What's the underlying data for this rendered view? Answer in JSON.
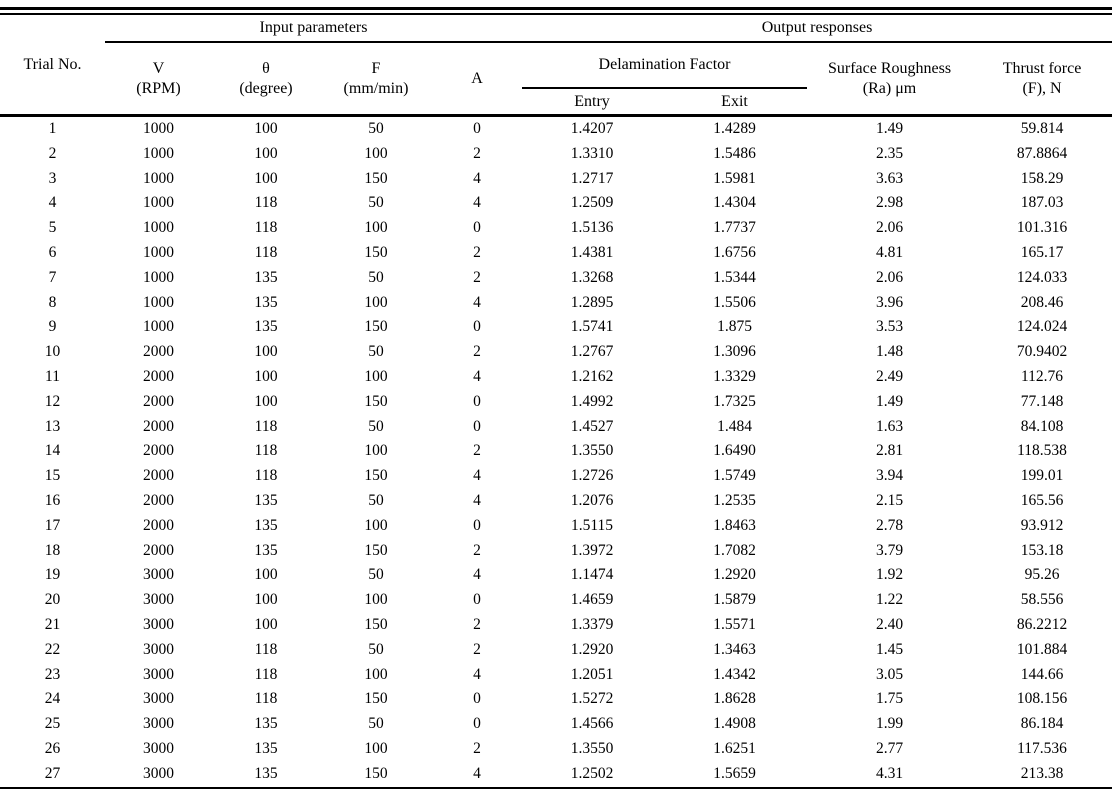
{
  "table": {
    "groups": {
      "trial_no": "Trial No.",
      "input": "Input parameters",
      "output": "Output responses"
    },
    "columns": {
      "v1": "V",
      "v2": "(RPM)",
      "theta1": "θ",
      "theta2": "(degree)",
      "f1": "F",
      "f2": "(mm/min)",
      "a": "A",
      "delam": "Delamination Factor",
      "entry": "Entry",
      "exit": "Exit",
      "surface1": "Surface Roughness",
      "surface2": "(Ra) μm",
      "thrust1": "Thrust force",
      "thrust2": "(F), N"
    },
    "rows": [
      [
        "1",
        "1000",
        "100",
        "50",
        "0",
        "1.4207",
        "1.4289",
        "1.49",
        "59.814"
      ],
      [
        "2",
        "1000",
        "100",
        "100",
        "2",
        "1.3310",
        "1.5486",
        "2.35",
        "87.8864"
      ],
      [
        "3",
        "1000",
        "100",
        "150",
        "4",
        "1.2717",
        "1.5981",
        "3.63",
        "158.29"
      ],
      [
        "4",
        "1000",
        "118",
        "50",
        "4",
        "1.2509",
        "1.4304",
        "2.98",
        "187.03"
      ],
      [
        "5",
        "1000",
        "118",
        "100",
        "0",
        "1.5136",
        "1.7737",
        "2.06",
        "101.316"
      ],
      [
        "6",
        "1000",
        "118",
        "150",
        "2",
        "1.4381",
        "1.6756",
        "4.81",
        "165.17"
      ],
      [
        "7",
        "1000",
        "135",
        "50",
        "2",
        "1.3268",
        "1.5344",
        "2.06",
        "124.033"
      ],
      [
        "8",
        "1000",
        "135",
        "100",
        "4",
        "1.2895",
        "1.5506",
        "3.96",
        "208.46"
      ],
      [
        "9",
        "1000",
        "135",
        "150",
        "0",
        "1.5741",
        "1.875",
        "3.53",
        "124.024"
      ],
      [
        "10",
        "2000",
        "100",
        "50",
        "2",
        "1.2767",
        "1.3096",
        "1.48",
        "70.9402"
      ],
      [
        "11",
        "2000",
        "100",
        "100",
        "4",
        "1.2162",
        "1.3329",
        "2.49",
        "112.76"
      ],
      [
        "12",
        "2000",
        "100",
        "150",
        "0",
        "1.4992",
        "1.7325",
        "1.49",
        "77.148"
      ],
      [
        "13",
        "2000",
        "118",
        "50",
        "0",
        "1.4527",
        "1.484",
        "1.63",
        "84.108"
      ],
      [
        "14",
        "2000",
        "118",
        "100",
        "2",
        "1.3550",
        "1.6490",
        "2.81",
        "118.538"
      ],
      [
        "15",
        "2000",
        "118",
        "150",
        "4",
        "1.2726",
        "1.5749",
        "3.94",
        "199.01"
      ],
      [
        "16",
        "2000",
        "135",
        "50",
        "4",
        "1.2076",
        "1.2535",
        "2.15",
        "165.56"
      ],
      [
        "17",
        "2000",
        "135",
        "100",
        "0",
        "1.5115",
        "1.8463",
        "2.78",
        "93.912"
      ],
      [
        "18",
        "2000",
        "135",
        "150",
        "2",
        "1.3972",
        "1.7082",
        "3.79",
        "153.18"
      ],
      [
        "19",
        "3000",
        "100",
        "50",
        "4",
        "1.1474",
        "1.2920",
        "1.92",
        "95.26"
      ],
      [
        "20",
        "3000",
        "100",
        "100",
        "0",
        "1.4659",
        "1.5879",
        "1.22",
        "58.556"
      ],
      [
        "21",
        "3000",
        "100",
        "150",
        "2",
        "1.3379",
        "1.5571",
        "2.40",
        "86.2212"
      ],
      [
        "22",
        "3000",
        "118",
        "50",
        "2",
        "1.2920",
        "1.3463",
        "1.45",
        "101.884"
      ],
      [
        "23",
        "3000",
        "118",
        "100",
        "4",
        "1.2051",
        "1.4342",
        "3.05",
        "144.66"
      ],
      [
        "24",
        "3000",
        "118",
        "150",
        "0",
        "1.5272",
        "1.8628",
        "1.75",
        "108.156"
      ],
      [
        "25",
        "3000",
        "135",
        "50",
        "0",
        "1.4566",
        "1.4908",
        "1.99",
        "86.184"
      ],
      [
        "26",
        "3000",
        "135",
        "100",
        "2",
        "1.3550",
        "1.6251",
        "2.77",
        "117.536"
      ],
      [
        "27",
        "3000",
        "135",
        "150",
        "4",
        "1.2502",
        "1.5659",
        "4.31",
        "213.38"
      ]
    ]
  }
}
